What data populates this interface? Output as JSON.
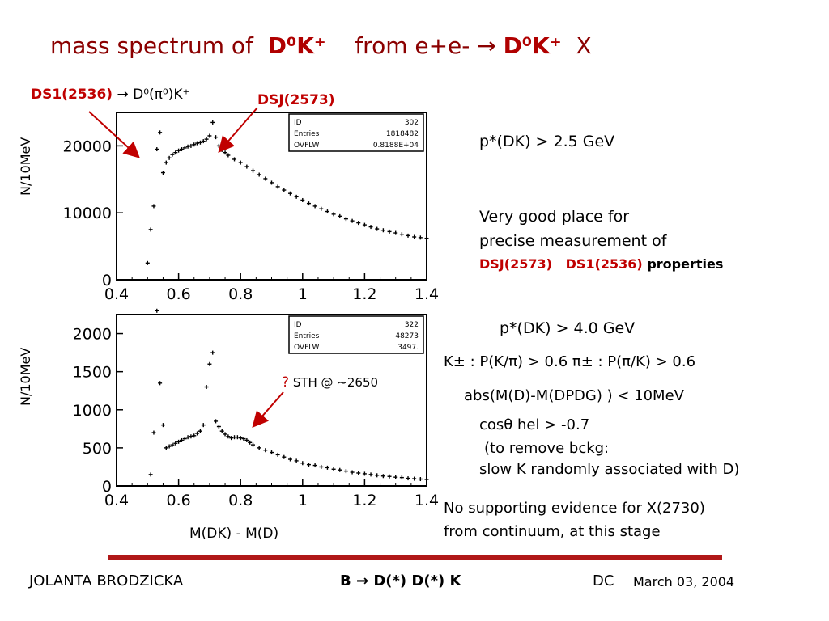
{
  "title": {
    "part1": "mass spectrum  of",
    "dk1": "D⁰K⁺",
    "part2": "from  e+e-",
    "arrow": "→",
    "dk2": "D⁰K⁺",
    "part3": "X"
  },
  "annotations": {
    "ds1_label": "DS1(2536)",
    "ds1_decay": "→ D⁰(π⁰)K⁺",
    "dsj_label": "DSJ(2573)",
    "sth_q": "?",
    "sth_text": "STH @ ~2650"
  },
  "right_text": {
    "cut1": "p*(DK) > 2.5 GeV",
    "place1": "Very good place for",
    "place2": "precise measurement of",
    "place3a": "DSJ(2573)",
    "place3b": "DS1(2536)",
    "place3c": "properties",
    "cut2": "p*(DK) > 4.0 GeV",
    "kpi": "K± : P(K/π) > 0.6    π± : P(π/K) > 0.6",
    "abs": "abs(M(D)-M(DPDG) ) < 10MeV",
    "cos": "cosθ hel > -0.7",
    "remove1": "(to remove bckg:",
    "remove2": "slow K randomly associated  with D)",
    "nosupport1": "No supporting evidence for X(2730)",
    "nosupport2": "from continuum, at this stage"
  },
  "footer": {
    "author": "JOLANTA  BRODZICKA",
    "topic": "B → D(*) D(*) K",
    "dc": "DC",
    "date": "March 03,  2004"
  },
  "chart_data": [
    {
      "type": "scatter",
      "xlabel": "",
      "ylabel": "N/10MeV",
      "xlim": [
        0.4,
        1.4
      ],
      "ylim": [
        0,
        25000
      ],
      "xticks": [
        "0.4",
        "0.6",
        "0.8",
        "1",
        "1.2",
        "1.4"
      ],
      "yticks": [
        "0",
        "10000",
        "20000"
      ],
      "stats": [
        [
          "ID",
          "302"
        ],
        [
          "Entries",
          "1818482"
        ],
        [
          "OVFLW",
          "0.8188E+04"
        ]
      ],
      "x": [
        0.5,
        0.51,
        0.52,
        0.53,
        0.54,
        0.55,
        0.56,
        0.57,
        0.58,
        0.59,
        0.6,
        0.61,
        0.62,
        0.63,
        0.64,
        0.65,
        0.66,
        0.67,
        0.68,
        0.69,
        0.7,
        0.71,
        0.72,
        0.73,
        0.74,
        0.75,
        0.76,
        0.78,
        0.8,
        0.82,
        0.84,
        0.86,
        0.88,
        0.9,
        0.92,
        0.94,
        0.96,
        0.98,
        1.0,
        1.02,
        1.04,
        1.06,
        1.08,
        1.1,
        1.12,
        1.14,
        1.16,
        1.18,
        1.2,
        1.22,
        1.24,
        1.26,
        1.28,
        1.3,
        1.32,
        1.34,
        1.36,
        1.38,
        1.4
      ],
      "values": [
        2500,
        7500,
        11000,
        19500,
        22000,
        16000,
        17500,
        18200,
        18700,
        19000,
        19300,
        19500,
        19700,
        19900,
        20000,
        20200,
        20400,
        20500,
        20700,
        21000,
        21500,
        23500,
        21300,
        20000,
        19400,
        19000,
        18600,
        18000,
        17500,
        16900,
        16300,
        15700,
        15100,
        14500,
        13900,
        13400,
        12900,
        12400,
        11900,
        11400,
        11000,
        10600,
        10200,
        9800,
        9500,
        9100,
        8800,
        8500,
        8200,
        7900,
        7600,
        7400,
        7200,
        7000,
        6800,
        6600,
        6400,
        6300,
        6200
      ]
    },
    {
      "type": "scatter",
      "xlabel": "M(DK) - M(D)",
      "ylabel": "N/10MeV",
      "xlim": [
        0.4,
        1.4
      ],
      "ylim": [
        0,
        2250
      ],
      "xticks": [
        "0.4",
        "0.6",
        "0.8",
        "1",
        "1.2",
        "1.4"
      ],
      "yticks": [
        "0",
        "500",
        "1000",
        "1500",
        "2000"
      ],
      "stats": [
        [
          "ID",
          "322"
        ],
        [
          "Entries",
          "48273"
        ],
        [
          "OVFLW",
          "3497."
        ]
      ],
      "x": [
        0.51,
        0.52,
        0.53,
        0.54,
        0.55,
        0.56,
        0.57,
        0.58,
        0.59,
        0.6,
        0.61,
        0.62,
        0.63,
        0.64,
        0.65,
        0.66,
        0.67,
        0.68,
        0.69,
        0.7,
        0.71,
        0.72,
        0.73,
        0.74,
        0.75,
        0.76,
        0.77,
        0.78,
        0.79,
        0.8,
        0.81,
        0.82,
        0.83,
        0.84,
        0.86,
        0.88,
        0.9,
        0.92,
        0.94,
        0.96,
        0.98,
        1.0,
        1.02,
        1.04,
        1.06,
        1.08,
        1.1,
        1.12,
        1.14,
        1.16,
        1.18,
        1.2,
        1.22,
        1.24,
        1.26,
        1.28,
        1.3,
        1.32,
        1.34,
        1.36,
        1.38,
        1.4
      ],
      "values": [
        150,
        700,
        2300,
        1350,
        800,
        500,
        520,
        540,
        560,
        580,
        600,
        620,
        640,
        650,
        660,
        690,
        720,
        800,
        1300,
        1600,
        1750,
        850,
        780,
        720,
        680,
        650,
        630,
        640,
        640,
        630,
        620,
        600,
        570,
        540,
        500,
        470,
        440,
        410,
        380,
        350,
        330,
        300,
        280,
        270,
        250,
        240,
        220,
        210,
        195,
        180,
        170,
        160,
        150,
        140,
        130,
        125,
        115,
        110,
        100,
        95,
        90,
        85
      ]
    }
  ]
}
